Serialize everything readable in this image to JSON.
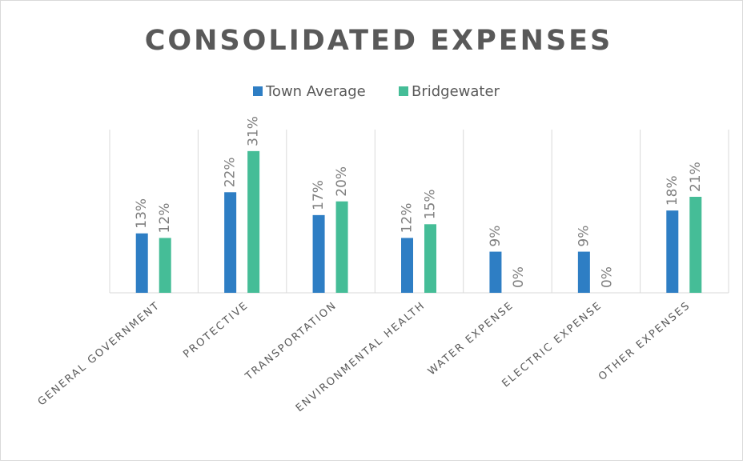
{
  "chart_data": {
    "type": "bar",
    "title": "CONSOLIDATED EXPENSES",
    "categories": [
      "GENERAL GOVERNMENT",
      "PROTECTIVE",
      "TRANSPORTATION",
      "ENVIRONMENTAL HEALTH",
      "WATER EXPENSE",
      "ELECTRIC EXPENSE",
      "OTHER EXPENSES"
    ],
    "series": [
      {
        "name": "Town Average",
        "color": "#2e7ec4",
        "values": [
          13,
          22,
          17,
          12,
          9,
          9,
          18
        ],
        "value_labels": [
          "13%",
          "22%",
          "17%",
          "12%",
          "9%",
          "9%",
          "18%"
        ]
      },
      {
        "name": "Bridgewater",
        "color": "#45bd97",
        "values": [
          12,
          31,
          20,
          15,
          0,
          0,
          21
        ],
        "value_labels": [
          "12%",
          "31%",
          "20%",
          "15%",
          "0%",
          "0%",
          "21%"
        ]
      }
    ],
    "ylim": [
      0,
      35
    ],
    "legend": "top"
  }
}
